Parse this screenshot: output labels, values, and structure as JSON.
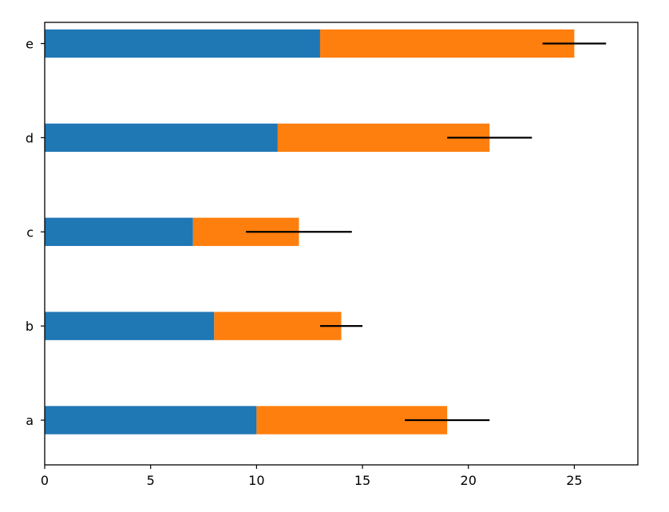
{
  "chart_data": {
    "type": "bar",
    "orientation": "horizontal",
    "stacked": true,
    "categories": [
      "a",
      "b",
      "c",
      "d",
      "e"
    ],
    "series": [
      {
        "values": [
          10,
          8,
          7,
          11,
          13
        ],
        "color": "#1f77b4"
      },
      {
        "values": [
          9,
          6,
          5,
          10,
          12
        ],
        "color": "#ff7f0e"
      }
    ],
    "error_bars": {
      "center": [
        19,
        14,
        12,
        21,
        25
      ],
      "xerr": [
        2,
        1,
        2.5,
        2,
        1.5
      ],
      "color": "#000000"
    },
    "xticks": [
      "0",
      "5",
      "10",
      "15",
      "20",
      "25"
    ],
    "xlim": [
      0,
      28
    ],
    "title": "",
    "xlabel": "",
    "ylabel": "",
    "grid": false,
    "legend": "none"
  }
}
